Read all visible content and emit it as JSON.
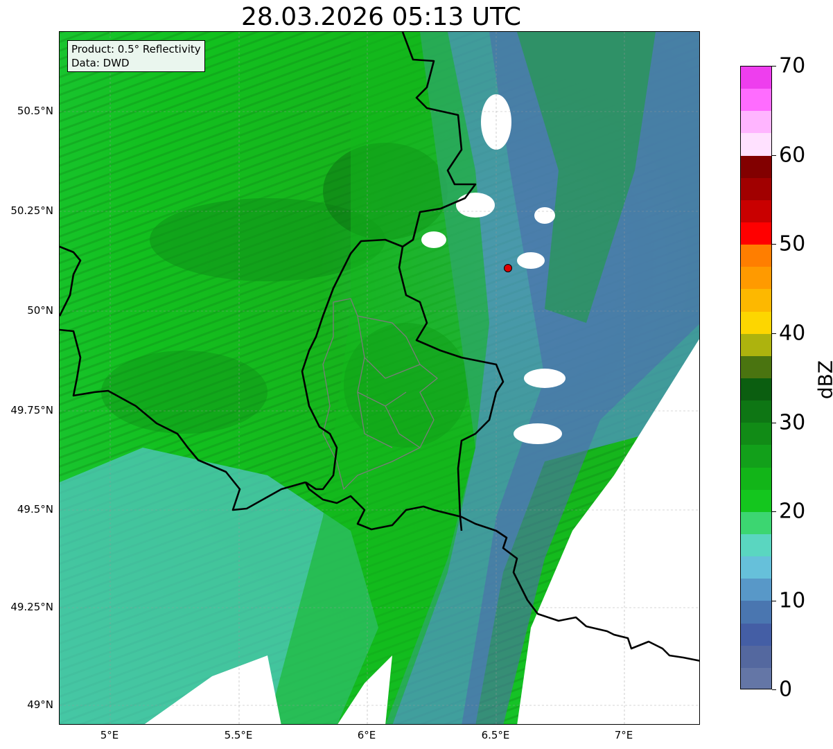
{
  "title": "28.03.2026 05:13 UTC",
  "info_box": {
    "product": "Product: 0.5° Reflectivity",
    "data": "Data: DWD"
  },
  "lat_labels": [
    "50.5°N",
    "50.25°N",
    "50°N",
    "49.75°N",
    "49.5°N",
    "49.25°N",
    "49°N"
  ],
  "lon_labels": [
    "5°E",
    "5.5°E",
    "6°E",
    "6.5°E",
    "7°E"
  ],
  "colorbar": {
    "label": "dBZ",
    "ticks": [
      "0",
      "10",
      "20",
      "30",
      "40",
      "50",
      "60",
      "70"
    ],
    "colors": [
      "#6476a6",
      "#54689f",
      "#445ea5",
      "#4a76b0",
      "#5898c8",
      "#66c0da",
      "#5ad6c0",
      "#3cd671",
      "#14c61e",
      "#12b518",
      "#12a01a",
      "#118b16",
      "#0e7614",
      "#0b5e10",
      "#4a7410",
      "#adb30e",
      "#fdd600",
      "#fdb800",
      "#ff9a00",
      "#ff7e00",
      "#ff0000",
      "#c90000",
      "#a10000",
      "#820000",
      "#ffe1ff",
      "#ffb5ff",
      "#ff6cff",
      "#ee3eee"
    ]
  },
  "colors": {
    "frame": "#000000",
    "border_line": "#000000",
    "admin_line": "#7b7b7b",
    "radar_site": "#ff0000"
  }
}
